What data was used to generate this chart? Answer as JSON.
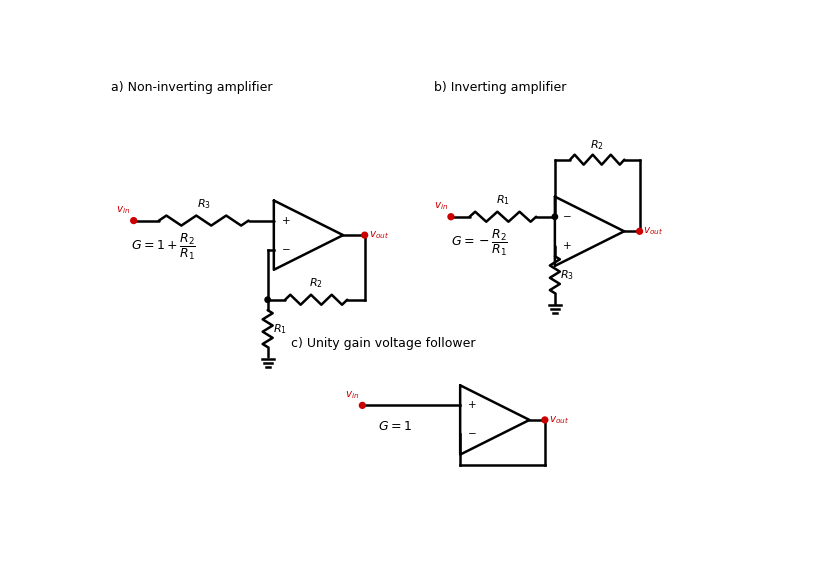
{
  "title_a": "a) Non-inverting amplifier",
  "title_b": "b) Inverting amplifier",
  "title_c": "c) Unity gain voltage follower",
  "bg_color": "#ffffff",
  "line_color": "#000000",
  "red_color": "#cc0000",
  "lw": 1.8
}
